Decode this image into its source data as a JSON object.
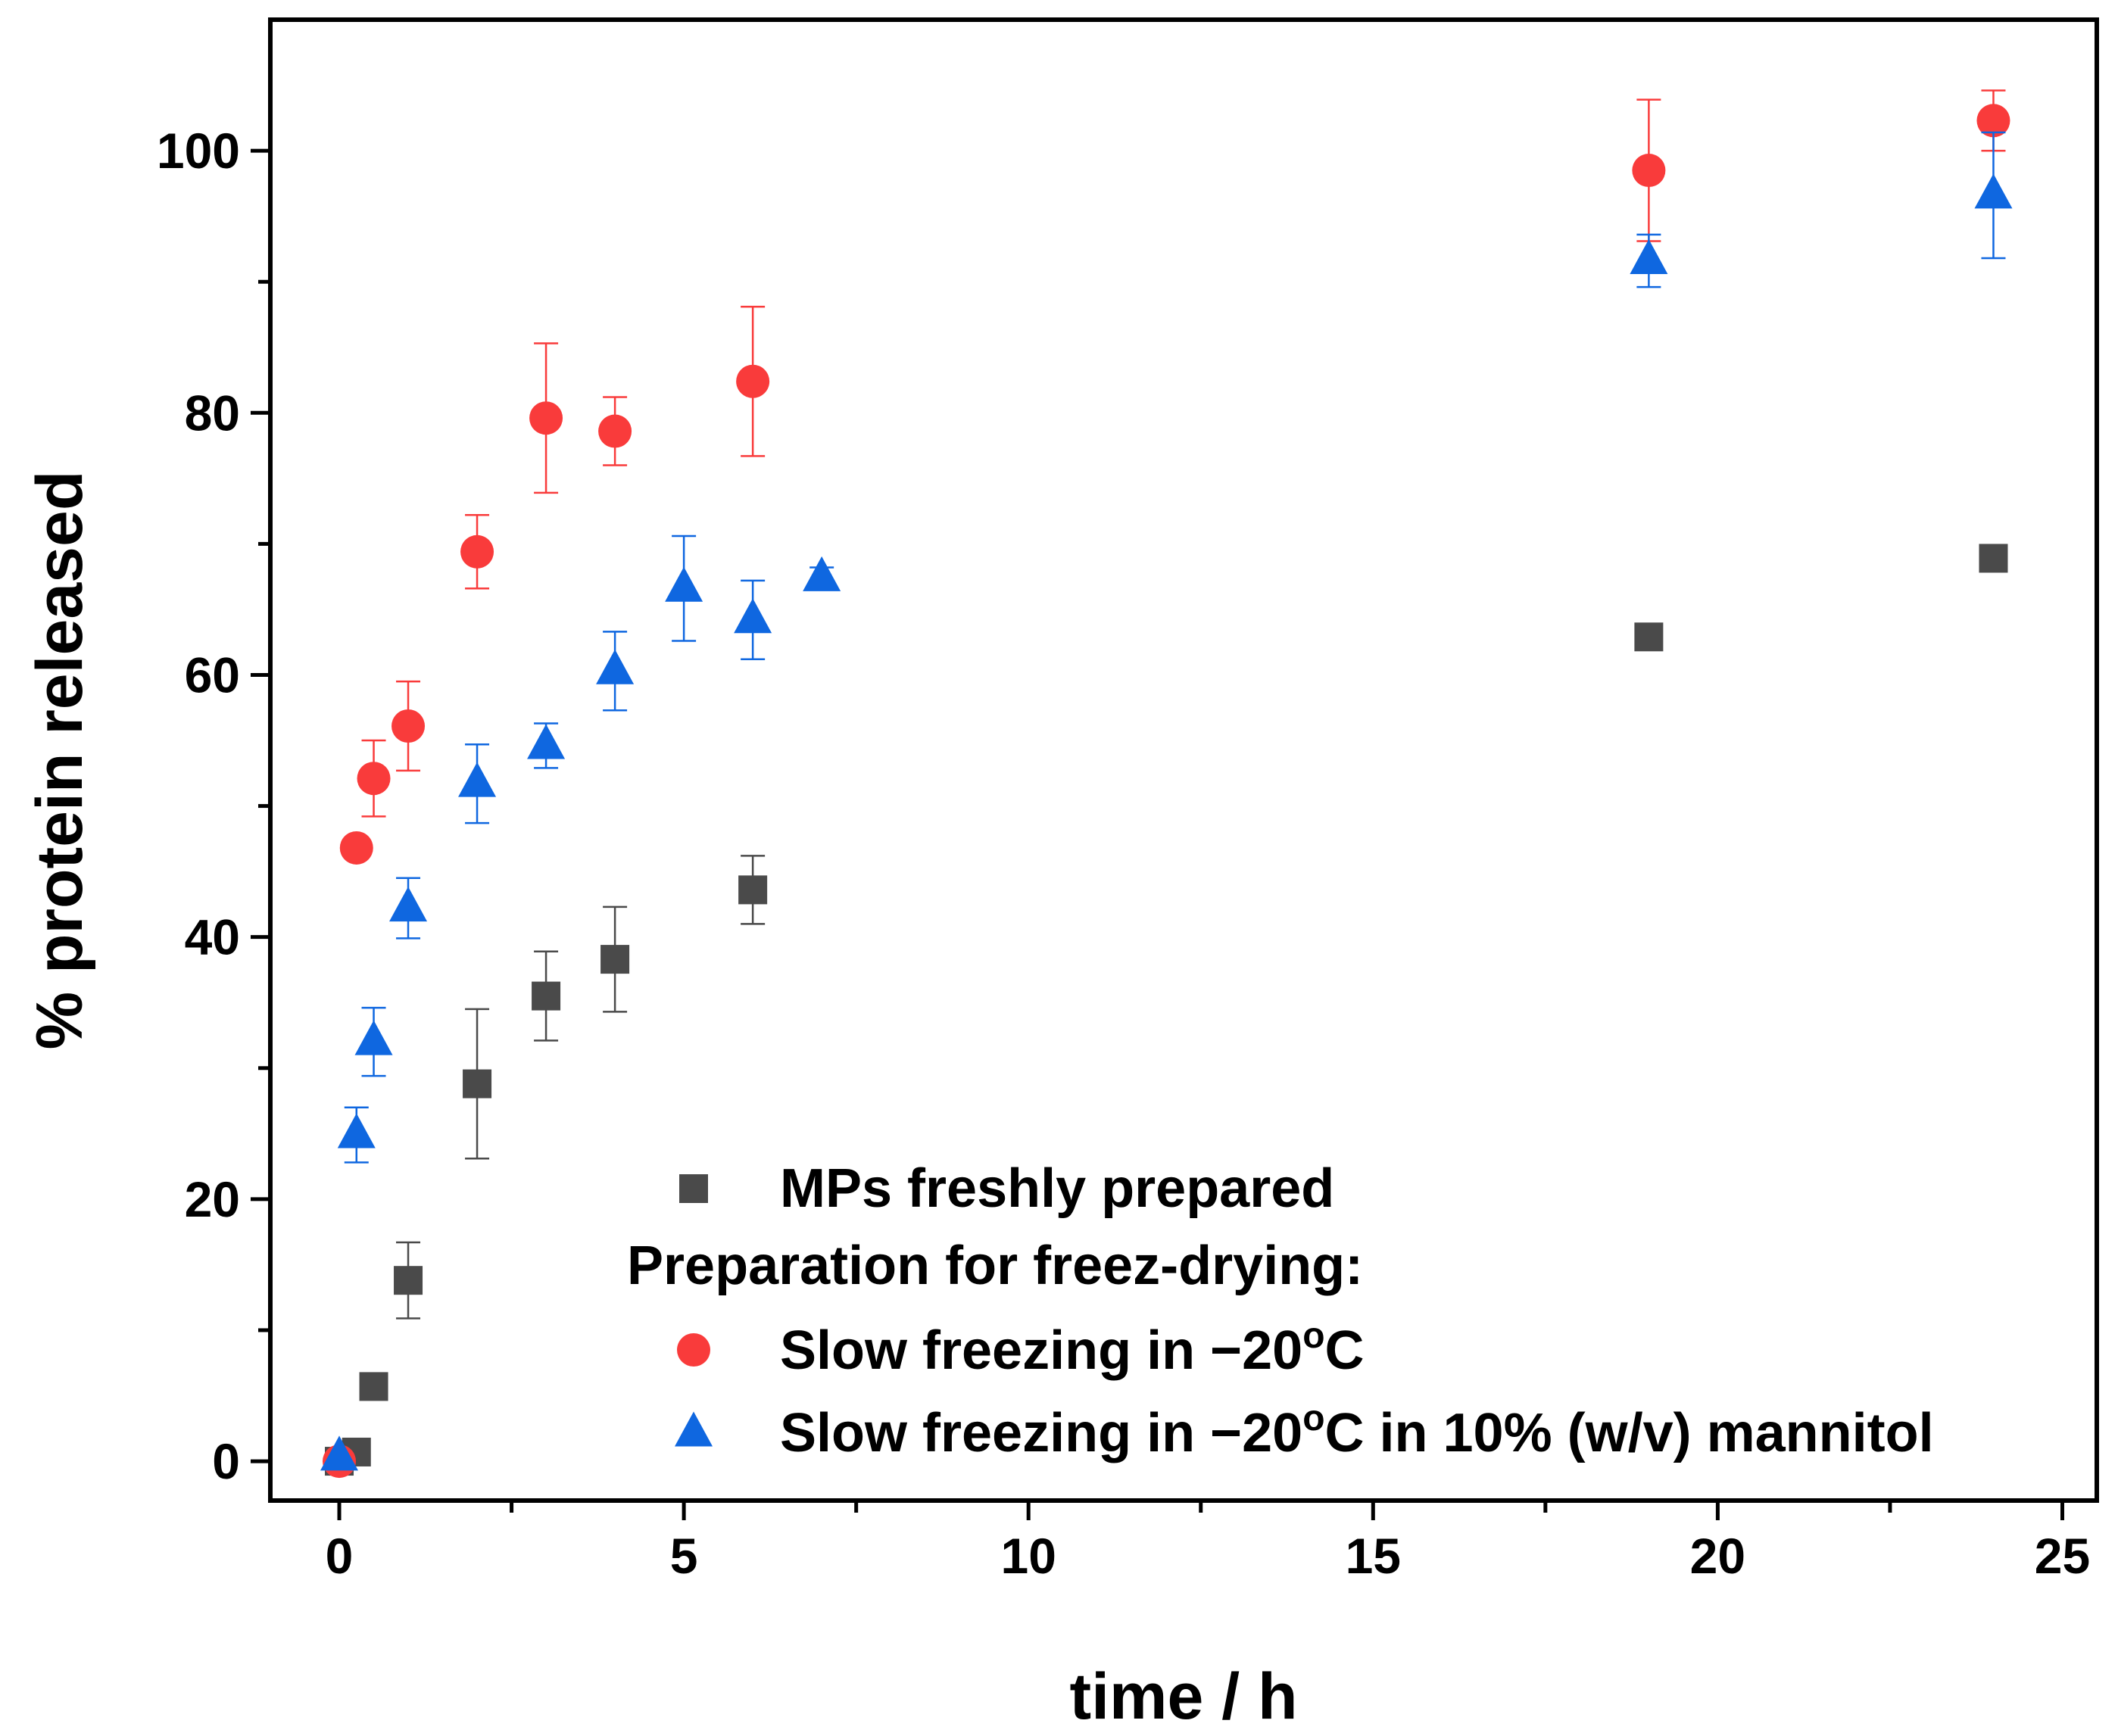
{
  "chart_data": {
    "type": "scatter",
    "title": "",
    "xlabel": "time / h",
    "ylabel": "% protein released",
    "xlim": [
      -1,
      25.5
    ],
    "ylim": [
      -3,
      110
    ],
    "xticks": [
      0,
      5,
      10,
      15,
      20,
      25
    ],
    "xticks_minor": [
      2.5,
      7.5,
      12.5,
      17.5,
      22.5
    ],
    "yticks": [
      0,
      20,
      40,
      60,
      80,
      100
    ],
    "yticks_minor": [
      10,
      30,
      50,
      70,
      90
    ],
    "xtick_labels": [
      "0",
      "5",
      "10",
      "15",
      "20",
      "25"
    ],
    "ytick_labels": [
      "0",
      "20",
      "40",
      "60",
      "80",
      "100"
    ],
    "grid": false,
    "legend_position": "bottom-center",
    "legend_header": "Preparation for freez-drying:",
    "series": [
      {
        "name": "MPs freshly prepared",
        "marker": "square",
        "color": "#4a4a4a",
        "points": [
          {
            "x": 0,
            "y": 0,
            "err": 0
          },
          {
            "x": 0.25,
            "y": 0.7,
            "err": 0
          },
          {
            "x": 0.5,
            "y": 5.7,
            "err": 0
          },
          {
            "x": 1,
            "y": 13.8,
            "err": 2.9
          },
          {
            "x": 2,
            "y": 28.8,
            "err": 5.7
          },
          {
            "x": 3,
            "y": 35.5,
            "err": 3.4
          },
          {
            "x": 4,
            "y": 38.3,
            "err": 4.0
          },
          {
            "x": 6,
            "y": 43.6,
            "err": 2.6
          },
          {
            "x": 19,
            "y": 62.9,
            "err": 0
          },
          {
            "x": 24,
            "y": 68.9,
            "err": 0
          }
        ]
      },
      {
        "name": "Slow freezing in −20°C",
        "display_name_main": "Slow freezing in −20",
        "display_name_sup": "o",
        "display_name_rest": "C",
        "marker": "circle",
        "color": "#f93b3b",
        "points": [
          {
            "x": 0,
            "y": 0,
            "err": 0
          },
          {
            "x": 0.25,
            "y": 46.8,
            "err": 0.8
          },
          {
            "x": 0.5,
            "y": 52.1,
            "err": 2.9
          },
          {
            "x": 1,
            "y": 56.1,
            "err": 3.4
          },
          {
            "x": 2,
            "y": 69.4,
            "err": 2.8
          },
          {
            "x": 3,
            "y": 79.6,
            "err": 5.7
          },
          {
            "x": 4,
            "y": 78.6,
            "err": 2.6
          },
          {
            "x": 6,
            "y": 82.4,
            "err": 5.7
          },
          {
            "x": 19,
            "y": 98.5,
            "err": 5.4
          },
          {
            "x": 24,
            "y": 102.3,
            "err": 2.3
          }
        ]
      },
      {
        "name": "Slow freezing in −20°C in 10% (w/v) mannitol",
        "display_name_main": "Slow freezing in −20",
        "display_name_sup": "o",
        "display_name_rest": "C in 10% (w/v) mannitol",
        "marker": "triangle",
        "color": "#0f67e0",
        "points": [
          {
            "x": 0,
            "y": 0.3,
            "err": 0
          },
          {
            "x": 0.25,
            "y": 24.9,
            "err": 2.1
          },
          {
            "x": 0.5,
            "y": 32.0,
            "err": 2.6
          },
          {
            "x": 1,
            "y": 42.2,
            "err": 2.3
          },
          {
            "x": 2,
            "y": 51.7,
            "err": 3.0
          },
          {
            "x": 3,
            "y": 54.6,
            "err": 1.7
          },
          {
            "x": 4,
            "y": 60.3,
            "err": 3.0
          },
          {
            "x": 5,
            "y": 66.6,
            "err": 4.0
          },
          {
            "x": 6,
            "y": 64.2,
            "err": 3.0
          },
          {
            "x": 7,
            "y": 67.4,
            "err": 0.8
          },
          {
            "x": 19,
            "y": 91.6,
            "err": 2.0
          },
          {
            "x": 24,
            "y": 96.6,
            "err": 4.8
          }
        ]
      }
    ]
  }
}
